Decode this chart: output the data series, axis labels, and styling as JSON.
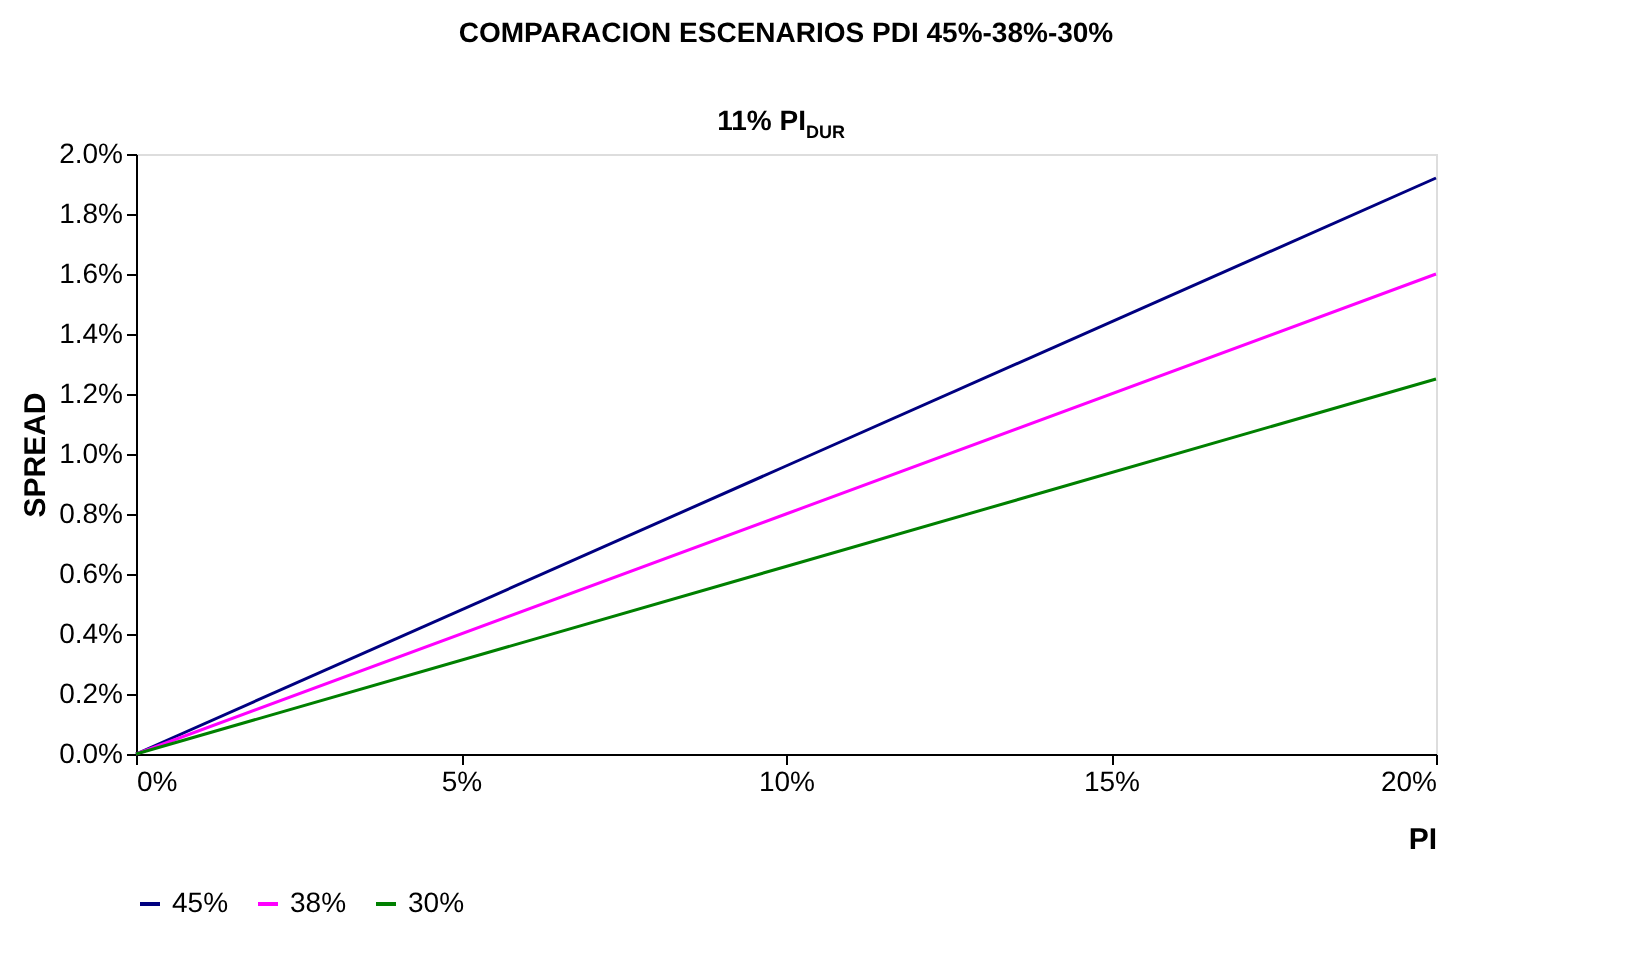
{
  "chart_data": {
    "type": "line",
    "title": "COMPARACION ESCENARIOS PDI 45%-38%-30%",
    "subtitle": "11% PI$_{DUR}$",
    "xlabel": "PI",
    "ylabel": "SPREAD",
    "x": [
      0,
      10,
      20
    ],
    "series": [
      {
        "name": "45%",
        "color": "#000080",
        "values": [
          0,
          0.96,
          1.92
        ]
      },
      {
        "name": "38%",
        "color": "#ff00ff",
        "values": [
          0,
          0.8,
          1.6
        ]
      },
      {
        "name": "30%",
        "color": "#008000",
        "values": [
          0,
          0.625,
          1.25
        ]
      }
    ],
    "xlim": [
      0,
      20
    ],
    "xticks": [
      {
        "value": 0,
        "label": "0%"
      },
      {
        "value": 5,
        "label": "5%"
      },
      {
        "value": 10,
        "label": "10%"
      },
      {
        "value": 15,
        "label": "15%"
      },
      {
        "value": 20,
        "label": "20%"
      }
    ],
    "ylim": [
      0,
      2.0
    ],
    "yticks": [
      {
        "value": 0,
        "label": "0.0%"
      },
      {
        "value": 0.2,
        "label": "0.2%"
      },
      {
        "value": 0.4,
        "label": "0.4%"
      },
      {
        "value": 0.6,
        "label": "0.6%"
      },
      {
        "value": 0.8,
        "label": "0.8%"
      },
      {
        "value": 1.0,
        "label": "1.0%"
      },
      {
        "value": 1.2,
        "label": "1.2%"
      },
      {
        "value": 1.4,
        "label": "1.4%"
      },
      {
        "value": 1.6,
        "label": "1.6%"
      },
      {
        "value": 1.8,
        "label": "1.8%"
      },
      {
        "value": 2.0,
        "label": "2.0%"
      }
    ],
    "grid": false,
    "legend": "bottom",
    "marker": "none",
    "line_style": "solid"
  }
}
